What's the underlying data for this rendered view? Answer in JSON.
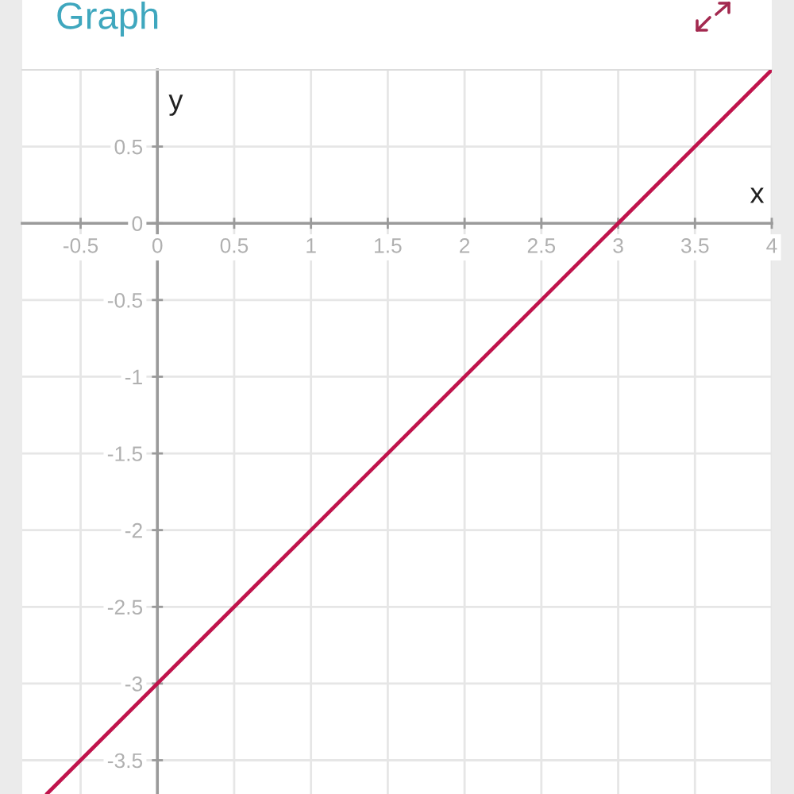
{
  "chart_data": {
    "type": "line",
    "title": "Graph",
    "xlabel": "x",
    "ylabel": "y",
    "x": [
      -0.72,
      0,
      3,
      4
    ],
    "series": [
      {
        "color": "#c0144c",
        "values": [
          -3.72,
          -3,
          0,
          1
        ]
      }
    ],
    "xlim": [
      -0.88,
      4
    ],
    "ylim": [
      -3.72,
      1
    ],
    "xticks": [
      -0.5,
      0,
      0.5,
      1,
      1.5,
      2,
      2.5,
      3,
      3.5,
      4
    ],
    "yticks": [
      -3.5,
      -3,
      -2.5,
      -2,
      -1.5,
      -1,
      -0.5,
      0,
      0.5
    ],
    "grid": true,
    "marker": "none",
    "line_style": "solid"
  }
}
